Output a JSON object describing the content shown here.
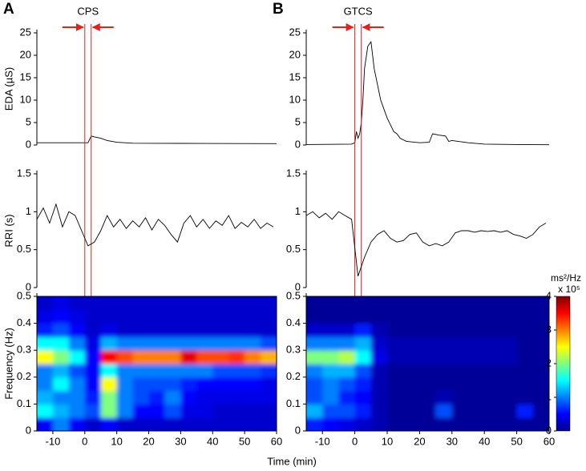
{
  "xlabel": "Time (min)",
  "chart_data": [
    {
      "type": "line",
      "panel": "A",
      "annotation": "CPS",
      "event_lines": [
        0,
        2
      ],
      "ylabel": "EDA (µS)",
      "color": "#000000",
      "xlim": [
        -15,
        60
      ],
      "ylim": [
        0,
        25
      ],
      "yticks": [
        0,
        5,
        10,
        15,
        20,
        25
      ],
      "x": [
        -15,
        0,
        1,
        2,
        3,
        5,
        7,
        10,
        15,
        30,
        60
      ],
      "values": [
        0.5,
        0.5,
        0.5,
        2,
        1.8,
        1.5,
        1,
        0.6,
        0.4,
        0.35,
        0.3
      ]
    },
    {
      "type": "line",
      "ylabel": "RRI (s)",
      "color": "#000000",
      "xlim": [
        -15,
        60
      ],
      "ylim": [
        0,
        1.5
      ],
      "yticks": [
        0,
        0.5,
        1,
        1.5
      ],
      "x": [
        -15,
        -13,
        -11,
        -9,
        -7,
        -5,
        -3,
        -1,
        1,
        3,
        5,
        7,
        9,
        11,
        13,
        15,
        17,
        19,
        21,
        23,
        25,
        27,
        29,
        31,
        33,
        35,
        37,
        39,
        41,
        43,
        45,
        47,
        49,
        51,
        53,
        55,
        57,
        59
      ],
      "values": [
        0.9,
        1.05,
        0.85,
        1.1,
        0.8,
        1.0,
        0.95,
        0.75,
        0.55,
        0.6,
        0.75,
        0.95,
        0.8,
        0.9,
        0.78,
        0.88,
        0.8,
        0.92,
        0.76,
        0.9,
        0.82,
        0.7,
        0.6,
        0.85,
        0.95,
        0.8,
        0.9,
        0.78,
        0.88,
        0.82,
        0.95,
        0.78,
        0.86,
        0.8,
        0.9,
        0.78,
        0.85,
        0.8
      ]
    },
    {
      "type": "heatmap",
      "ylabel": "Frequency (Hz)",
      "xlim": [
        -15,
        60
      ],
      "xticks": [
        -10,
        0,
        10,
        20,
        30,
        40,
        50,
        60
      ],
      "ylim": [
        0,
        0.5
      ],
      "yticks": [
        0,
        0.1,
        0.2,
        0.3,
        0.4,
        0.5
      ],
      "xbins": [
        -15,
        -10,
        -5,
        0,
        5,
        10,
        15,
        20,
        25,
        30,
        35,
        40,
        45,
        50,
        55,
        60
      ],
      "ybins": [
        0,
        0.05,
        0.1,
        0.15,
        0.2,
        0.25,
        0.3,
        0.35,
        0.4,
        0.45,
        0.5
      ],
      "clim": [
        0,
        4
      ],
      "z": [
        [
          0.5,
          1,
          0.5,
          0.3,
          0.5,
          0.3,
          0.3,
          0.3,
          0.3,
          0.3,
          0.3,
          0.3,
          0.3,
          0.3,
          0.3
        ],
        [
          1.5,
          1.2,
          1,
          0.8,
          2,
          1,
          0.5,
          0.5,
          0.8,
          0.4,
          0.4,
          0.3,
          0.3,
          0.3,
          0.3
        ],
        [
          1.2,
          1,
          1,
          0.6,
          2,
          1,
          0.8,
          0.6,
          1,
          0.5,
          0.4,
          0.4,
          0.4,
          0.4,
          0.4
        ],
        [
          1,
          1.5,
          1,
          0.5,
          2.5,
          1,
          0.8,
          0.8,
          0.8,
          0.6,
          0.5,
          0.5,
          0.5,
          0.5,
          0.4
        ],
        [
          1,
          1.2,
          0.8,
          0.5,
          1.5,
          1,
          1,
          1,
          1,
          1,
          1,
          0.8,
          0.8,
          0.8,
          0.7
        ],
        [
          2.5,
          2,
          1.5,
          0.5,
          3.5,
          3.2,
          3,
          3,
          3,
          3.6,
          3.2,
          3.2,
          3.3,
          3,
          2.8
        ],
        [
          1.5,
          1.5,
          1,
          0.4,
          1.2,
          1,
          1,
          1,
          1,
          1,
          1,
          1,
          1,
          1,
          0.8
        ],
        [
          0.6,
          0.8,
          0.5,
          0.3,
          0.4,
          0.3,
          0.3,
          0.3,
          0.3,
          0.3,
          0.3,
          0.3,
          0.3,
          0.3,
          0.3
        ],
        [
          0.4,
          0.5,
          0.4,
          0.3,
          0.3,
          0.3,
          0.3,
          0.3,
          0.3,
          0.3,
          0.3,
          0.3,
          0.3,
          0.3,
          0.3
        ],
        [
          0.3,
          0.4,
          0.3,
          0.3,
          0.3,
          0.3,
          0.3,
          0.3,
          0.3,
          0.3,
          0.3,
          0.3,
          0.3,
          0.3,
          0.3
        ]
      ]
    },
    {
      "type": "line",
      "panel": "B",
      "annotation": "GTCS",
      "event_lines": [
        0,
        2
      ],
      "color": "#000000",
      "xlim": [
        -15,
        60
      ],
      "ylim": [
        0,
        25
      ],
      "yticks": [
        0,
        5,
        10,
        15,
        20,
        25
      ],
      "x": [
        -15,
        -1,
        0,
        0.5,
        1,
        1.5,
        2,
        2.5,
        3,
        4,
        5,
        6,
        8,
        10,
        12,
        13,
        14,
        16,
        20,
        23,
        24,
        26,
        28,
        29,
        30,
        35,
        40,
        50,
        60
      ],
      "values": [
        0.1,
        0.2,
        0.5,
        3,
        1.5,
        2.5,
        5,
        10,
        17,
        22,
        23,
        17,
        10,
        6,
        3,
        2.5,
        1.5,
        0.8,
        0.5,
        0.6,
        2.5,
        2.2,
        2,
        0.8,
        1,
        0.5,
        0.2,
        0.1,
        0.05
      ]
    },
    {
      "type": "line",
      "color": "#000000",
      "xlim": [
        -15,
        60
      ],
      "ylim": [
        0,
        1.5
      ],
      "yticks": [
        0,
        0.5,
        1,
        1.5
      ],
      "x": [
        -15,
        -13,
        -11,
        -9,
        -7,
        -5,
        -3,
        -1,
        1,
        3,
        5,
        7,
        9,
        11,
        13,
        15,
        17,
        19,
        21,
        23,
        25,
        27,
        29,
        31,
        33,
        35,
        37,
        39,
        41,
        43,
        45,
        47,
        49,
        51,
        53,
        55,
        57,
        59
      ],
      "values": [
        0.95,
        1.0,
        0.92,
        0.98,
        0.9,
        1.0,
        0.95,
        0.9,
        0.15,
        0.4,
        0.6,
        0.7,
        0.75,
        0.65,
        0.6,
        0.62,
        0.7,
        0.72,
        0.6,
        0.55,
        0.58,
        0.55,
        0.6,
        0.72,
        0.75,
        0.75,
        0.73,
        0.75,
        0.74,
        0.75,
        0.73,
        0.75,
        0.7,
        0.68,
        0.65,
        0.7,
        0.8,
        0.85
      ]
    },
    {
      "type": "heatmap",
      "xlim": [
        -15,
        60
      ],
      "xticks": [
        -10,
        0,
        10,
        20,
        30,
        40,
        50,
        60
      ],
      "ylim": [
        0,
        0.5
      ],
      "yticks": [
        0,
        0.1,
        0.2,
        0.3,
        0.4,
        0.5
      ],
      "xbins": [
        -15,
        -10,
        -5,
        0,
        5,
        10,
        15,
        20,
        25,
        30,
        35,
        40,
        45,
        50,
        55,
        60
      ],
      "ybins": [
        0,
        0.05,
        0.1,
        0.15,
        0.2,
        0.25,
        0.3,
        0.35,
        0.4,
        0.45,
        0.5
      ],
      "clim": [
        0,
        4
      ],
      "colorbar": {
        "label": "ms²/Hz",
        "sublabel": "x 10⁵",
        "ticks": [
          0,
          1,
          2,
          3,
          4
        ]
      },
      "z": [
        [
          0.6,
          0.5,
          0.4,
          0.3,
          0.2,
          0.1,
          0.1,
          0.1,
          0.1,
          0.1,
          0.1,
          0.1,
          0.1,
          0.1,
          0.1
        ],
        [
          1.2,
          0.8,
          0.8,
          0.6,
          0.2,
          0.1,
          0.1,
          0.1,
          0.8,
          0.1,
          0.1,
          0.1,
          0.1,
          0.6,
          0.1
        ],
        [
          0.8,
          1,
          0.6,
          0.5,
          0.2,
          0.1,
          0.1,
          0.1,
          0.2,
          0.1,
          0.1,
          0.1,
          0.1,
          0.1,
          0.1
        ],
        [
          0.8,
          1,
          0.8,
          0.6,
          0.2,
          0.1,
          0.1,
          0.1,
          0.1,
          0.1,
          0.1,
          0.1,
          0.1,
          0.1,
          0.1
        ],
        [
          1,
          1.2,
          1.2,
          0.8,
          0.2,
          0.1,
          0.1,
          0.1,
          0.1,
          0.1,
          0.1,
          0.1,
          0.1,
          0.1,
          0.1
        ],
        [
          2,
          2,
          2.2,
          1.5,
          0.4,
          0.2,
          0.2,
          0.2,
          0.2,
          0.2,
          0.2,
          0.2,
          0.2,
          0.1,
          0.1
        ],
        [
          1,
          1,
          1,
          1.2,
          0.3,
          0.2,
          0.2,
          0.2,
          0.2,
          0.2,
          0.2,
          0.2,
          0.2,
          0.1,
          0.1
        ],
        [
          0.3,
          0.3,
          0.3,
          0.6,
          0.2,
          0.1,
          0.1,
          0.1,
          0.1,
          0.1,
          0.1,
          0.1,
          0.1,
          0.1,
          0.1
        ],
        [
          0.1,
          0.1,
          0.1,
          0.1,
          0.1,
          0.1,
          0.1,
          0.1,
          0.1,
          0.1,
          0.1,
          0.1,
          0.1,
          0.1,
          0.1
        ],
        [
          0.1,
          0.1,
          0.1,
          0.1,
          0.1,
          0.1,
          0.1,
          0.1,
          0.1,
          0.1,
          0.1,
          0.1,
          0.1,
          0.1,
          0.1
        ]
      ]
    }
  ]
}
